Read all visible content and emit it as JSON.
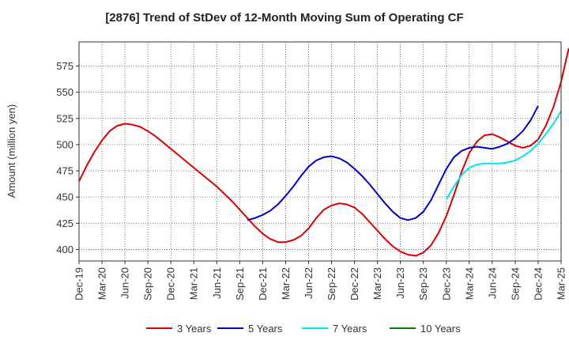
{
  "chart_data": {
    "type": "line",
    "title": "[2876]  Trend of StDev of 12-Month Moving Sum of Operating CF",
    "xlabel": "",
    "ylabel": "Amount (million yen)",
    "ylim": [
      389,
      598
    ],
    "yticks": [
      400,
      425,
      450,
      475,
      500,
      525,
      550,
      575
    ],
    "x_tick_labels": [
      "Dec-19",
      "Mar-20",
      "Jun-20",
      "Sep-20",
      "Dec-20",
      "Mar-21",
      "Jun-21",
      "Sep-21",
      "Dec-21",
      "Mar-22",
      "Jun-22",
      "Sep-22",
      "Dec-22",
      "Mar-23",
      "Jun-23",
      "Sep-23",
      "Dec-23",
      "Mar-24",
      "Jun-24",
      "Sep-24",
      "Dec-24",
      "Mar-25"
    ],
    "x_months_span": 63,
    "grid": true,
    "legend_position": "bottom",
    "series": [
      {
        "name": "3 Years",
        "color": "#e00000",
        "start_month": 0,
        "values": [
          465,
          480,
          493,
          504,
          513,
          518,
          520,
          519,
          517,
          513,
          508,
          502,
          496,
          490,
          484,
          478,
          472,
          466,
          460,
          453,
          446,
          438,
          430,
          422,
          415,
          410,
          407,
          407,
          409,
          413,
          420,
          430,
          438,
          442,
          444,
          443,
          440,
          434,
          426,
          418,
          410,
          403,
          398,
          395,
          394,
          397,
          404,
          416,
          432,
          452,
          474,
          492,
          503,
          509,
          510,
          507,
          503,
          499,
          497,
          499,
          505,
          518,
          536,
          560,
          592
        ]
      },
      {
        "name": "5 Years",
        "color": "#0000cc",
        "start_month": 22,
        "values": [
          428,
          430,
          433,
          437,
          443,
          451,
          460,
          470,
          479,
          485,
          488,
          489,
          487,
          483,
          477,
          470,
          462,
          453,
          444,
          436,
          430,
          428,
          430,
          436,
          447,
          462,
          477,
          488,
          494,
          497,
          498,
          497,
          496,
          498,
          501,
          506,
          513,
          523,
          537
        ]
      },
      {
        "name": "7 Years",
        "color": "#00e5ee",
        "start_month": 48,
        "values": [
          448,
          460,
          471,
          478,
          481,
          482,
          482,
          482,
          483,
          485,
          489,
          494,
          501,
          510,
          520,
          532
        ]
      },
      {
        "name": "10 Years",
        "color": "#008000",
        "start_month": 0,
        "values": []
      }
    ]
  }
}
